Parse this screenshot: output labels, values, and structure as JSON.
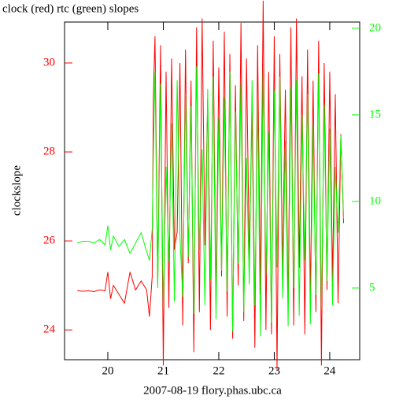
{
  "chart_data": {
    "type": "line",
    "title": "clock (red) rtc (green) slopes",
    "x_label": "2007-08-19 flory.phas.ubc.ca",
    "y_label": "clockslope",
    "xlim": [
      19.22,
      24.54
    ],
    "xticks": [
      20,
      21,
      22,
      23,
      24
    ],
    "ylim": [
      23.33,
      30.92
    ],
    "yticks": [
      24,
      26,
      28,
      30
    ],
    "y2lim": [
      0.86,
      20.36
    ],
    "y2ticks": [
      5,
      10,
      15,
      20
    ],
    "x": [
      19.45,
      19.55,
      19.65,
      19.75,
      19.85,
      19.95,
      20.0,
      20.05,
      20.1,
      20.2,
      20.3,
      20.4,
      20.5,
      20.6,
      20.7,
      20.75,
      20.8,
      20.82,
      20.85,
      20.9,
      20.95,
      21.0,
      21.05,
      21.1,
      21.15,
      21.2,
      21.25,
      21.3,
      21.35,
      21.4,
      21.45,
      21.5,
      21.55,
      21.6,
      21.65,
      21.7,
      21.75,
      21.8,
      21.85,
      21.9,
      21.95,
      22.0,
      22.05,
      22.1,
      22.15,
      22.2,
      22.25,
      22.3,
      22.35,
      22.4,
      22.45,
      22.5,
      22.55,
      22.6,
      22.65,
      22.7,
      22.75,
      22.8,
      22.85,
      22.9,
      22.95,
      23.0,
      23.05,
      23.1,
      23.15,
      23.2,
      23.25,
      23.3,
      23.35,
      23.4,
      23.45,
      23.5,
      23.55,
      23.6,
      23.65,
      23.7,
      23.75,
      23.8,
      23.85,
      23.9,
      23.95,
      24.0,
      24.05,
      24.1,
      24.15,
      24.2,
      24.25
    ],
    "series": [
      {
        "name": "clock",
        "color": "#ff0000",
        "axis": "y",
        "values": [
          24.88,
          24.87,
          24.88,
          24.86,
          24.9,
          24.88,
          25.3,
          24.7,
          25.0,
          24.8,
          24.6,
          25.3,
          24.9,
          25.1,
          24.9,
          24.3,
          25.2,
          29.2,
          30.6,
          25.0,
          30.4,
          23.2,
          29.8,
          24.5,
          30.1,
          25.8,
          26.2,
          30.0,
          24.1,
          30.3,
          25.5,
          29.6,
          23.5,
          30.8,
          24.4,
          31.0,
          25.9,
          29.2,
          24.0,
          30.5,
          24.6,
          29.9,
          25.2,
          30.7,
          24.3,
          30.2,
          23.8,
          29.5,
          25.0,
          30.9,
          24.2,
          30.1,
          25.6,
          29.0,
          23.6,
          30.4,
          24.8,
          31.4,
          24.0,
          29.8,
          23.9,
          30.6,
          23.1,
          30.2,
          25.3,
          29.4,
          24.5,
          30.8,
          24.1,
          31.0,
          25.4,
          29.7,
          23.9,
          30.3,
          24.7,
          29.6,
          24.4,
          30.5,
          23.2,
          30.0,
          24.9,
          29.8,
          25.1,
          29.3,
          24.6,
          28.4,
          26.4
        ]
      },
      {
        "name": "rtc",
        "color": "#00ff00",
        "axis": "y2",
        "values": [
          7.6,
          7.7,
          7.7,
          7.6,
          7.8,
          7.5,
          8.6,
          7.2,
          8.0,
          7.4,
          7.8,
          7.0,
          7.6,
          8.2,
          7.1,
          6.6,
          8.4,
          12.5,
          17.5,
          5.0,
          16.8,
          3.8,
          12.0,
          6.5,
          14.5,
          4.2,
          17.0,
          8.0,
          4.5,
          16.2,
          6.8,
          15.5,
          3.5,
          17.8,
          7.2,
          13.0,
          4.0,
          16.5,
          5.5,
          17.2,
          3.2,
          14.8,
          6.0,
          16.0,
          4.8,
          17.5,
          2.5,
          15.2,
          6.4,
          16.8,
          3.6,
          12.5,
          5.2,
          17.0,
          4.0,
          15.8,
          2.2,
          17.6,
          5.8,
          14.0,
          3.0,
          16.4,
          6.2,
          17.2,
          4.4,
          13.5,
          2.8,
          16.6,
          5.0,
          17.0,
          3.4,
          15.0,
          6.6,
          16.2,
          2.9,
          14.4,
          4.6,
          17.4,
          3.8,
          15.6,
          5.4,
          14.2,
          4.0,
          12.0,
          8.2,
          13.8,
          9.0
        ]
      }
    ],
    "tick_colors": {
      "y": "#ff0000",
      "y2": "#00ff00",
      "x": "#000000"
    }
  }
}
